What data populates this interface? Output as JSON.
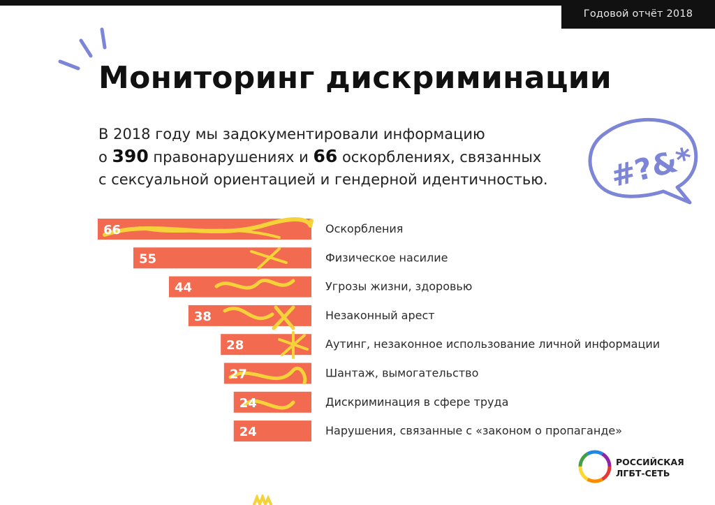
{
  "header": {
    "report_label": "Годовой отчёт 2018"
  },
  "title": "Мониторинг дискриминации",
  "intro": {
    "line1": "В 2018 году мы задокументировали информацию",
    "line2_a": "о ",
    "total_violations": "390",
    "line2_b": " правонарушениях и ",
    "total_insults": "66",
    "line2_c": " оскорблениях, связанных",
    "line3": "с сексуальной ориентацией и гендерной идентичностью."
  },
  "bubble_text": "#?&*",
  "logo": {
    "line1": "РОССИЙСКАЯ",
    "line2": "ЛГБТ-СЕТЬ"
  },
  "colors": {
    "bar": "#f26a4f",
    "scribble": "#f6d23a",
    "accent_blue": "#7d86d6"
  },
  "chart_data": {
    "type": "bar",
    "orientation": "horizontal",
    "alignment": "right",
    "categories": [
      "Оскорбления",
      "Физическое насилие",
      "Угрозы жизни, здоровью",
      "Незаконный арест",
      "Аутинг, незаконное использование личной информации",
      "Шантаж, вымогательство",
      "Дискриминация в сфере труда",
      "Нарушения, связанные с «законом о пропаганде»"
    ],
    "values": [
      66,
      55,
      44,
      38,
      28,
      27,
      24,
      24
    ],
    "title": "",
    "xlabel": "",
    "ylabel": "",
    "xlim": [
      0,
      66
    ],
    "grid": false,
    "legend": "none"
  }
}
